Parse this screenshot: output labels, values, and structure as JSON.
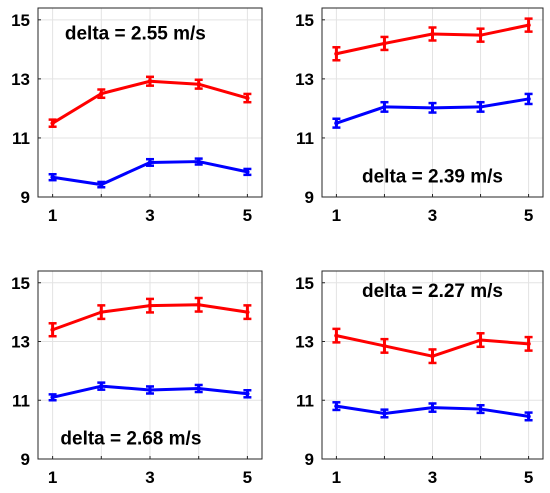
{
  "chart_data": [
    {
      "type": "line",
      "x": [
        1,
        2,
        3,
        4,
        5
      ],
      "xticks": [
        "1",
        "3",
        "5"
      ],
      "yticks": [
        "9",
        "11",
        "13",
        "15"
      ],
      "xlim": [
        0.7,
        5.3
      ],
      "ylim": [
        9,
        15.4
      ],
      "grid": true,
      "annotation": "delta = 2.55 m/s",
      "annotation_position": "top-left",
      "series": [
        {
          "color": "#ff0000",
          "values": [
            11.5,
            12.5,
            12.92,
            12.82,
            12.35
          ],
          "errors": [
            0.12,
            0.14,
            0.15,
            0.15,
            0.14
          ]
        },
        {
          "color": "#0000ff",
          "values": [
            9.67,
            9.42,
            10.17,
            10.2,
            9.85
          ],
          "errors": [
            0.1,
            0.09,
            0.11,
            0.1,
            0.1
          ]
        }
      ]
    },
    {
      "type": "line",
      "x": [
        1,
        2,
        3,
        4,
        5
      ],
      "xticks": [
        "1",
        "3",
        "5"
      ],
      "yticks": [
        "9",
        "11",
        "13",
        "15"
      ],
      "xlim": [
        0.7,
        5.3
      ],
      "ylim": [
        9,
        15.4
      ],
      "grid": true,
      "annotation": "delta = 2.39 m/s",
      "annotation_position": "lower-middle",
      "series": [
        {
          "color": "#ff0000",
          "values": [
            13.85,
            14.2,
            14.52,
            14.48,
            14.82
          ],
          "errors": [
            0.22,
            0.22,
            0.22,
            0.22,
            0.22
          ]
        },
        {
          "color": "#0000ff",
          "values": [
            11.5,
            12.05,
            12.02,
            12.05,
            12.32
          ],
          "errors": [
            0.15,
            0.16,
            0.16,
            0.16,
            0.17
          ]
        }
      ]
    },
    {
      "type": "line",
      "x": [
        1,
        2,
        3,
        4,
        5
      ],
      "xticks": [
        "1",
        "3",
        "5"
      ],
      "yticks": [
        "9",
        "11",
        "13",
        "15"
      ],
      "xlim": [
        0.7,
        5.3
      ],
      "ylim": [
        9,
        15.4
      ],
      "grid": true,
      "annotation": "delta = 2.68 m/s",
      "annotation_position": "bottom-left",
      "series": [
        {
          "color": "#ff0000",
          "values": [
            13.4,
            14.0,
            14.22,
            14.25,
            14.0
          ],
          "errors": [
            0.22,
            0.23,
            0.23,
            0.23,
            0.23
          ]
        },
        {
          "color": "#0000ff",
          "values": [
            11.1,
            11.48,
            11.35,
            11.4,
            11.22
          ],
          "errors": [
            0.1,
            0.12,
            0.12,
            0.12,
            0.12
          ]
        }
      ]
    },
    {
      "type": "line",
      "x": [
        1,
        2,
        3,
        4,
        5
      ],
      "xticks": [
        "1",
        "3",
        "5"
      ],
      "yticks": [
        "9",
        "11",
        "13",
        "15"
      ],
      "xlim": [
        0.7,
        5.3
      ],
      "ylim": [
        9,
        15.4
      ],
      "grid": true,
      "annotation": "delta = 2.27 m/s",
      "annotation_position": "top-middle",
      "series": [
        {
          "color": "#ff0000",
          "values": [
            13.2,
            12.85,
            12.5,
            13.05,
            12.92
          ],
          "errors": [
            0.23,
            0.23,
            0.23,
            0.23,
            0.23
          ]
        },
        {
          "color": "#0000ff",
          "values": [
            10.8,
            10.55,
            10.75,
            10.7,
            10.45
          ],
          "errors": [
            0.13,
            0.13,
            0.14,
            0.13,
            0.13
          ]
        }
      ]
    }
  ]
}
